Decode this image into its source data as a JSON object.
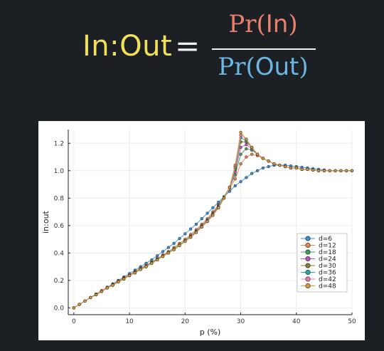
{
  "formula": {
    "lhs": "In:Out",
    "eq": "=",
    "num_prefix": "Pr(",
    "num_arg": "In",
    "num_suffix": ")",
    "den_prefix": "Pr(",
    "den_arg": "Out",
    "den_suffix": ")",
    "colors": {
      "lhs": "#f2e05c",
      "num": "#e8826a",
      "den": "#6ab7e3"
    }
  },
  "chart_data": {
    "type": "line",
    "xlabel": "p (%)",
    "ylabel": "in:out",
    "xlim": [
      -1,
      50
    ],
    "ylim": [
      -0.05,
      1.3
    ],
    "xticks": [
      0,
      10,
      20,
      30,
      40,
      50
    ],
    "yticks": [
      0.0,
      0.2,
      0.4,
      0.6,
      0.8,
      1.0,
      1.2
    ],
    "ytick_labels": [
      "0.0",
      "0.2",
      "0.4",
      "0.6",
      "0.8",
      "1.0",
      "1.2"
    ],
    "grid": true,
    "legend_position": "bottom-right",
    "x": [
      0,
      1,
      2,
      3,
      4,
      5,
      6,
      7,
      8,
      9,
      10,
      11,
      12,
      13,
      14,
      15,
      16,
      17,
      18,
      19,
      20,
      21,
      22,
      23,
      24,
      25,
      26,
      27,
      28,
      29,
      30,
      31,
      32,
      33,
      34,
      35,
      36,
      37,
      38,
      39,
      40,
      41,
      42,
      43,
      44,
      45,
      46,
      47,
      48,
      49,
      50
    ],
    "series": [
      {
        "name": "d=6",
        "color": "#3d8fd1",
        "values": [
          0.0,
          0.025,
          0.05,
          0.075,
          0.1,
          0.125,
          0.15,
          0.175,
          0.2,
          0.225,
          0.25,
          0.275,
          0.3,
          0.325,
          0.35,
          0.38,
          0.41,
          0.44,
          0.47,
          0.505,
          0.54,
          0.575,
          0.61,
          0.65,
          0.69,
          0.73,
          0.77,
          0.81,
          0.85,
          0.89,
          0.92,
          0.95,
          0.98,
          1.0,
          1.02,
          1.03,
          1.04,
          1.04,
          1.04,
          1.035,
          1.03,
          1.025,
          1.02,
          1.015,
          1.01,
          1.005,
          1.0,
          1.0,
          1.0,
          1.0,
          1.0
        ]
      },
      {
        "name": "d=12",
        "color": "#e8834a",
        "values": [
          0.0,
          0.025,
          0.05,
          0.075,
          0.1,
          0.125,
          0.15,
          0.17,
          0.195,
          0.22,
          0.24,
          0.265,
          0.29,
          0.31,
          0.335,
          0.36,
          0.385,
          0.41,
          0.44,
          0.47,
          0.5,
          0.535,
          0.57,
          0.61,
          0.65,
          0.7,
          0.75,
          0.81,
          0.87,
          0.94,
          1.05,
          1.1,
          1.12,
          1.11,
          1.09,
          1.07,
          1.05,
          1.04,
          1.03,
          1.02,
          1.02,
          1.01,
          1.01,
          1.005,
          1.0,
          1.0,
          1.0,
          1.0,
          1.0,
          1.0,
          1.0
        ]
      },
      {
        "name": "d=18",
        "color": "#3aa05a",
        "values": [
          0.0,
          0.025,
          0.05,
          0.075,
          0.1,
          0.12,
          0.145,
          0.17,
          0.19,
          0.215,
          0.235,
          0.26,
          0.285,
          0.305,
          0.33,
          0.355,
          0.38,
          0.405,
          0.43,
          0.46,
          0.49,
          0.525,
          0.56,
          0.6,
          0.64,
          0.69,
          0.745,
          0.81,
          0.88,
          0.97,
          1.12,
          1.16,
          1.15,
          1.12,
          1.09,
          1.07,
          1.05,
          1.04,
          1.03,
          1.02,
          1.02,
          1.01,
          1.01,
          1.005,
          1.0,
          1.0,
          1.0,
          1.0,
          1.0,
          1.0,
          1.0
        ]
      },
      {
        "name": "d=24",
        "color": "#c04fc8",
        "values": [
          0.0,
          0.025,
          0.05,
          0.075,
          0.095,
          0.12,
          0.145,
          0.165,
          0.19,
          0.21,
          0.235,
          0.255,
          0.28,
          0.3,
          0.325,
          0.35,
          0.375,
          0.4,
          0.425,
          0.455,
          0.485,
          0.52,
          0.555,
          0.595,
          0.635,
          0.685,
          0.74,
          0.8,
          0.88,
          0.99,
          1.17,
          1.19,
          1.16,
          1.12,
          1.09,
          1.07,
          1.05,
          1.04,
          1.03,
          1.02,
          1.02,
          1.01,
          1.01,
          1.005,
          1.0,
          1.0,
          1.0,
          1.0,
          1.0,
          1.0,
          1.0
        ]
      },
      {
        "name": "d=30",
        "color": "#8b7d2e",
        "values": [
          0.0,
          0.025,
          0.05,
          0.075,
          0.095,
          0.12,
          0.145,
          0.165,
          0.19,
          0.21,
          0.235,
          0.255,
          0.28,
          0.3,
          0.325,
          0.35,
          0.375,
          0.4,
          0.425,
          0.455,
          0.485,
          0.515,
          0.55,
          0.59,
          0.63,
          0.68,
          0.735,
          0.8,
          0.88,
          1.01,
          1.21,
          1.21,
          1.17,
          1.12,
          1.09,
          1.07,
          1.05,
          1.04,
          1.03,
          1.02,
          1.02,
          1.01,
          1.01,
          1.005,
          1.0,
          1.0,
          1.0,
          1.0,
          1.0,
          1.0,
          1.0
        ]
      },
      {
        "name": "d=36",
        "color": "#2aa6a0",
        "values": [
          0.0,
          0.025,
          0.05,
          0.075,
          0.095,
          0.12,
          0.145,
          0.165,
          0.19,
          0.21,
          0.235,
          0.255,
          0.28,
          0.3,
          0.325,
          0.35,
          0.375,
          0.4,
          0.425,
          0.455,
          0.485,
          0.515,
          0.55,
          0.59,
          0.63,
          0.675,
          0.73,
          0.8,
          0.88,
          1.02,
          1.24,
          1.22,
          1.17,
          1.12,
          1.09,
          1.07,
          1.05,
          1.04,
          1.03,
          1.02,
          1.02,
          1.01,
          1.01,
          1.005,
          1.0,
          1.0,
          1.0,
          1.0,
          1.0,
          1.0,
          1.0
        ]
      },
      {
        "name": "d=42",
        "color": "#e87aa8",
        "values": [
          0.0,
          0.025,
          0.05,
          0.075,
          0.095,
          0.12,
          0.145,
          0.165,
          0.19,
          0.21,
          0.235,
          0.255,
          0.28,
          0.3,
          0.325,
          0.35,
          0.375,
          0.4,
          0.425,
          0.455,
          0.485,
          0.515,
          0.55,
          0.59,
          0.63,
          0.675,
          0.73,
          0.8,
          0.88,
          1.03,
          1.26,
          1.23,
          1.17,
          1.12,
          1.09,
          1.07,
          1.05,
          1.04,
          1.03,
          1.02,
          1.02,
          1.01,
          1.01,
          1.005,
          1.0,
          1.0,
          1.0,
          1.0,
          1.0,
          1.0,
          1.0
        ]
      },
      {
        "name": "d=48",
        "color": "#d89a3a",
        "values": [
          0.0,
          0.025,
          0.05,
          0.075,
          0.095,
          0.12,
          0.145,
          0.165,
          0.19,
          0.21,
          0.235,
          0.255,
          0.28,
          0.3,
          0.325,
          0.35,
          0.375,
          0.4,
          0.425,
          0.455,
          0.485,
          0.515,
          0.55,
          0.59,
          0.63,
          0.675,
          0.73,
          0.8,
          0.88,
          1.04,
          1.28,
          1.23,
          1.17,
          1.12,
          1.09,
          1.07,
          1.05,
          1.04,
          1.03,
          1.02,
          1.02,
          1.01,
          1.01,
          1.005,
          1.0,
          1.0,
          1.0,
          1.0,
          1.0,
          1.0,
          1.0
        ]
      }
    ]
  }
}
